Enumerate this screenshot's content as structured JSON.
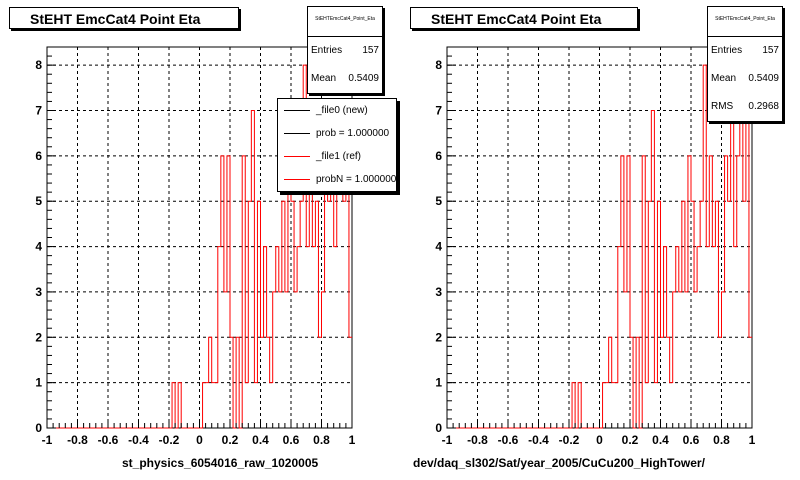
{
  "chart_data": [
    {
      "type": "histogram",
      "title": "StEHT EmcCat4 Point Eta",
      "xlabel": "st_physics_6054016_raw_1020005",
      "xlim": [
        -1,
        1
      ],
      "ylim": [
        0,
        8.4
      ],
      "x_ticks": [
        "-1",
        "-0.8",
        "-0.6",
        "-0.4",
        "-0.2",
        "0",
        "0.2",
        "0.4",
        "0.6",
        "0.8",
        "1"
      ],
      "y_ticks": [
        "0",
        "1",
        "2",
        "3",
        "4",
        "5",
        "6",
        "7",
        "8"
      ],
      "grid": true,
      "bin_width": 0.02,
      "bin_start": -1.0,
      "series": [
        {
          "name": "_file1 (ref)",
          "color": "#ff0000",
          "values": [
            0,
            0,
            0,
            0,
            0,
            0,
            0,
            0,
            0,
            0,
            0,
            0,
            0,
            0,
            0,
            0,
            0,
            0,
            0,
            0,
            0,
            0,
            0,
            0,
            0,
            0,
            0,
            0,
            0,
            0,
            0,
            0,
            0,
            0,
            0,
            0,
            0,
            0,
            0,
            0,
            0,
            1,
            0,
            1,
            0,
            0,
            0,
            0,
            0,
            0,
            0,
            1,
            1,
            2,
            1,
            1,
            4,
            6,
            3,
            6,
            2,
            0,
            2,
            0,
            6,
            1,
            5,
            7,
            1,
            5,
            2,
            4,
            2,
            1,
            3,
            4,
            3,
            5,
            3,
            6,
            5,
            3,
            4,
            5,
            8,
            4,
            6,
            4,
            5,
            2,
            3,
            6,
            5,
            7,
            4,
            6,
            7,
            5,
            7,
            2
          ]
        }
      ],
      "stats": {
        "name": "StEHTEmcCat4_Point_Eta",
        "entries": "157",
        "mean": "0.5409",
        "rms": "0.2968"
      },
      "legend": [
        {
          "label": "_file0 (new)",
          "color": "#000000"
        },
        {
          "label": "prob = 1.000000",
          "color": "#000000"
        },
        {
          "label": "_file1 (ref)",
          "color": "#ff0000"
        },
        {
          "label": "probN = 1.000000",
          "color": "#ff0000"
        }
      ]
    },
    {
      "type": "histogram",
      "title": "StEHT EmcCat4 Point Eta",
      "xlabel": "dev/daq_sl302/Sat/year_2005/CuCu200_HighTower/",
      "xlim": [
        -1,
        1
      ],
      "ylim": [
        0,
        8.4
      ],
      "x_ticks": [
        "-1",
        "-0.8",
        "-0.6",
        "-0.4",
        "-0.2",
        "0",
        "0.2",
        "0.4",
        "0.6",
        "0.8",
        "1"
      ],
      "y_ticks": [
        "0",
        "1",
        "2",
        "3",
        "4",
        "5",
        "6",
        "7",
        "8"
      ],
      "grid": true,
      "bin_width": 0.02,
      "bin_start": -1.0,
      "series": [
        {
          "name": "_file1 (ref)",
          "color": "#ff0000",
          "values": [
            0,
            0,
            0,
            0,
            0,
            0,
            0,
            0,
            0,
            0,
            0,
            0,
            0,
            0,
            0,
            0,
            0,
            0,
            0,
            0,
            0,
            0,
            0,
            0,
            0,
            0,
            0,
            0,
            0,
            0,
            0,
            0,
            0,
            0,
            0,
            0,
            0,
            0,
            0,
            0,
            0,
            1,
            0,
            1,
            0,
            0,
            0,
            0,
            0,
            0,
            0,
            1,
            1,
            2,
            1,
            1,
            4,
            6,
            3,
            6,
            2,
            0,
            2,
            0,
            6,
            1,
            5,
            7,
            1,
            5,
            2,
            4,
            2,
            1,
            3,
            4,
            3,
            5,
            3,
            6,
            5,
            3,
            4,
            5,
            8,
            4,
            6,
            4,
            5,
            2,
            3,
            6,
            5,
            7,
            4,
            6,
            7,
            5,
            7,
            2
          ]
        }
      ],
      "stats": {
        "name": "StEHTEmcCat4_Point_Eta",
        "entries": "157",
        "mean": "0.5409",
        "rms": "0.2968"
      }
    }
  ],
  "labels": {
    "entries": "Entries",
    "mean": "Mean",
    "rms": "RMS"
  }
}
